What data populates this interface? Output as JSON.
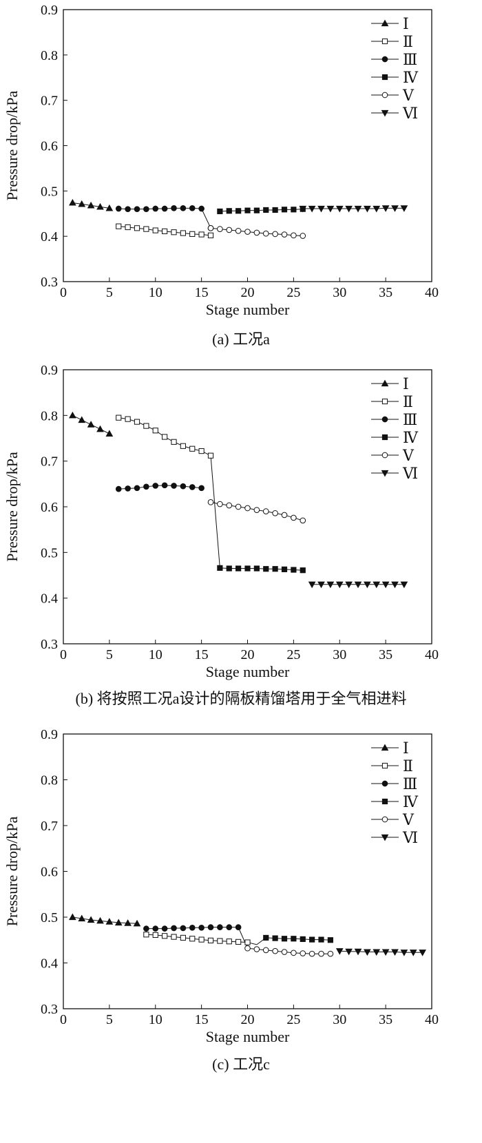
{
  "chart_data": [
    {
      "type": "line",
      "caption": "(a) 工况a",
      "xlabel": "Stage number",
      "ylabel": "Pressure drop/kPa",
      "xlim": [
        0,
        40
      ],
      "ylim": [
        0.3,
        0.9
      ],
      "xticks": [
        0,
        5,
        10,
        15,
        20,
        25,
        30,
        35,
        40
      ],
      "yticks": [
        0.3,
        0.4,
        0.5,
        0.6,
        0.7,
        0.8,
        0.9
      ],
      "legend": "top-right",
      "series": [
        {
          "name": "Ⅰ",
          "marker": "triangle-up-filled",
          "x": [
            1,
            2,
            3,
            4,
            5
          ],
          "y": [
            0.474,
            0.471,
            0.468,
            0.465,
            0.462
          ]
        },
        {
          "name": "Ⅱ",
          "marker": "square-open",
          "x": [
            6,
            7,
            8,
            9,
            10,
            11,
            12,
            13,
            14,
            15,
            16
          ],
          "y": [
            0.422,
            0.42,
            0.418,
            0.416,
            0.413,
            0.411,
            0.409,
            0.407,
            0.405,
            0.404,
            0.402
          ]
        },
        {
          "name": "Ⅲ",
          "marker": "circle-filled",
          "x": [
            6,
            7,
            8,
            9,
            10,
            11,
            12,
            13,
            14,
            15,
            16
          ],
          "y": [
            0.461,
            0.46,
            0.46,
            0.46,
            0.461,
            0.461,
            0.462,
            0.462,
            0.462,
            0.461,
            0.418
          ]
        },
        {
          "name": "Ⅳ",
          "marker": "square-filled",
          "x": [
            17,
            18,
            19,
            20,
            21,
            22,
            23,
            24,
            25,
            26
          ],
          "y": [
            0.455,
            0.456,
            0.456,
            0.457,
            0.457,
            0.458,
            0.458,
            0.459,
            0.459,
            0.46
          ]
        },
        {
          "name": "Ⅴ",
          "marker": "circle-open",
          "x": [
            16,
            17,
            18,
            19,
            20,
            21,
            22,
            23,
            24,
            25,
            26
          ],
          "y": [
            0.418,
            0.416,
            0.414,
            0.412,
            0.41,
            0.408,
            0.406,
            0.405,
            0.404,
            0.402,
            0.401
          ]
        },
        {
          "name": "Ⅵ",
          "marker": "triangle-down-filled",
          "x": [
            26,
            27,
            28,
            29,
            30,
            31,
            32,
            33,
            34,
            35,
            36,
            37
          ],
          "y": [
            0.461,
            0.461,
            0.461,
            0.461,
            0.461,
            0.461,
            0.461,
            0.461,
            0.461,
            0.462,
            0.462,
            0.462
          ]
        }
      ]
    },
    {
      "type": "line",
      "caption": "(b) 将按照工况a设计的隔板精馏塔用于全气相进料",
      "xlabel": "Stage number",
      "ylabel": "Pressure drop/kPa",
      "xlim": [
        0,
        40
      ],
      "ylim": [
        0.3,
        0.9
      ],
      "xticks": [
        0,
        5,
        10,
        15,
        20,
        25,
        30,
        35,
        40
      ],
      "yticks": [
        0.3,
        0.4,
        0.5,
        0.6,
        0.7,
        0.8,
        0.9
      ],
      "legend": "top-right",
      "series": [
        {
          "name": "Ⅰ",
          "marker": "triangle-up-filled",
          "x": [
            1,
            2,
            3,
            4,
            5
          ],
          "y": [
            0.8,
            0.79,
            0.78,
            0.77,
            0.76
          ]
        },
        {
          "name": "Ⅱ",
          "marker": "square-open",
          "x": [
            6,
            7,
            8,
            9,
            10,
            11,
            12,
            13,
            14,
            15,
            16
          ],
          "y": [
            0.795,
            0.792,
            0.786,
            0.777,
            0.767,
            0.753,
            0.742,
            0.733,
            0.727,
            0.722,
            0.712
          ]
        },
        {
          "name": "Ⅲ",
          "marker": "circle-filled",
          "x": [
            6,
            7,
            8,
            9,
            10,
            11,
            12,
            13,
            14,
            15
          ],
          "y": [
            0.639,
            0.64,
            0.641,
            0.644,
            0.646,
            0.647,
            0.646,
            0.645,
            0.643,
            0.641
          ]
        },
        {
          "name": "Ⅳ",
          "marker": "square-filled",
          "x": [
            17,
            18,
            19,
            20,
            21,
            22,
            23,
            24,
            25,
            26
          ],
          "y": [
            0.466,
            0.465,
            0.465,
            0.465,
            0.465,
            0.464,
            0.464,
            0.463,
            0.462,
            0.461
          ]
        },
        {
          "name": "Ⅴ",
          "marker": "circle-open",
          "x": [
            16,
            17,
            18,
            19,
            20,
            21,
            22,
            23,
            24,
            25,
            26
          ],
          "y": [
            0.61,
            0.606,
            0.603,
            0.6,
            0.597,
            0.593,
            0.59,
            0.586,
            0.582,
            0.576,
            0.57
          ]
        },
        {
          "name": "Ⅵ",
          "marker": "triangle-down-filled",
          "x": [
            27,
            28,
            29,
            30,
            31,
            32,
            33,
            34,
            35,
            36,
            37
          ],
          "y": [
            0.43,
            0.43,
            0.43,
            0.43,
            0.43,
            0.43,
            0.43,
            0.43,
            0.43,
            0.43,
            0.43
          ]
        }
      ],
      "connector_lines": [
        {
          "from": [
            16,
            0.712
          ],
          "to": [
            17,
            0.466
          ]
        }
      ]
    },
    {
      "type": "line",
      "caption": "(c) 工况c",
      "xlabel": "Stage number",
      "ylabel": "Pressure drop/kPa",
      "xlim": [
        0,
        40
      ],
      "ylim": [
        0.3,
        0.9
      ],
      "xticks": [
        0,
        5,
        10,
        15,
        20,
        25,
        30,
        35,
        40
      ],
      "yticks": [
        0.3,
        0.4,
        0.5,
        0.6,
        0.7,
        0.8,
        0.9
      ],
      "legend": "top-right",
      "series": [
        {
          "name": "Ⅰ",
          "marker": "triangle-up-filled",
          "x": [
            1,
            2,
            3,
            4,
            5,
            6,
            7,
            8
          ],
          "y": [
            0.5,
            0.497,
            0.494,
            0.492,
            0.49,
            0.488,
            0.487,
            0.486
          ]
        },
        {
          "name": "Ⅱ",
          "marker": "square-open",
          "x": [
            9,
            10,
            11,
            12,
            13,
            14,
            15,
            16,
            17,
            18,
            19,
            20
          ],
          "y": [
            0.462,
            0.461,
            0.459,
            0.457,
            0.455,
            0.453,
            0.451,
            0.449,
            0.448,
            0.447,
            0.446,
            0.445
          ]
        },
        {
          "name": "Ⅲ",
          "marker": "circle-filled",
          "x": [
            9,
            10,
            11,
            12,
            13,
            14,
            15,
            16,
            17,
            18,
            19
          ],
          "y": [
            0.475,
            0.475,
            0.475,
            0.476,
            0.476,
            0.477,
            0.477,
            0.478,
            0.478,
            0.478,
            0.478
          ]
        },
        {
          "name": "Ⅳ",
          "marker": "square-filled",
          "x": [
            22,
            23,
            24,
            25,
            26,
            27,
            28,
            29
          ],
          "y": [
            0.455,
            0.454,
            0.453,
            0.453,
            0.452,
            0.451,
            0.451,
            0.45
          ]
        },
        {
          "name": "Ⅴ",
          "marker": "circle-open",
          "x": [
            20,
            21,
            22,
            23,
            24,
            25,
            26,
            27,
            28,
            29
          ],
          "y": [
            0.432,
            0.43,
            0.428,
            0.426,
            0.424,
            0.422,
            0.421,
            0.42,
            0.42,
            0.42
          ]
        },
        {
          "name": "Ⅵ",
          "marker": "triangle-down-filled",
          "x": [
            30,
            31,
            32,
            33,
            34,
            35,
            36,
            37,
            38,
            39
          ],
          "y": [
            0.426,
            0.425,
            0.425,
            0.424,
            0.424,
            0.424,
            0.424,
            0.423,
            0.423,
            0.423
          ]
        }
      ],
      "connector_lines": [
        {
          "from": [
            19,
            0.478
          ],
          "to": [
            20,
            0.432
          ]
        },
        {
          "from": [
            20,
            0.445
          ],
          "to": [
            21,
            0.44
          ]
        },
        {
          "from": [
            21,
            0.44
          ],
          "to": [
            22,
            0.455
          ]
        }
      ]
    }
  ]
}
